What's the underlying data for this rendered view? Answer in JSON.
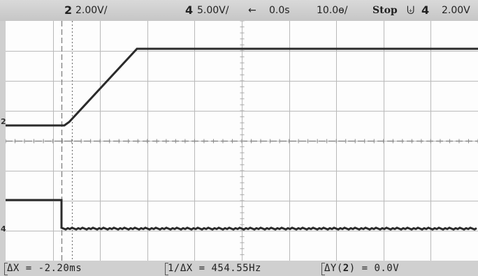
{
  "top_bar": {
    "ch2_number": "2",
    "ch2_scale": "2.00V/",
    "ch4_number": "4",
    "ch4_scale": "5.00V/",
    "delay_arrow": "←",
    "delay": "0.0s",
    "timebase": "10.0",
    "timebase_unit": "ɵ/",
    "run_state": "Stop",
    "trigger_symbol": "⨄",
    "trigger_channel": "4",
    "trigger_level": "2.00V"
  },
  "markers": {
    "ch2_ground": "2",
    "ch4_ground": "4"
  },
  "measurements": {
    "delta_x": "ΔX = -2.20ms",
    "inv_delta_x": "1/ΔX = 454.55Hz",
    "delta_y_prefix": "ΔY(",
    "delta_y_channel": "2",
    "delta_y_suffix": ") = 0.0V"
  },
  "colors": {
    "screen_bg": "#fdfdfd",
    "grid": "#b9b9b9",
    "trace": "#2a2a2a",
    "cursor": "#777777"
  }
}
